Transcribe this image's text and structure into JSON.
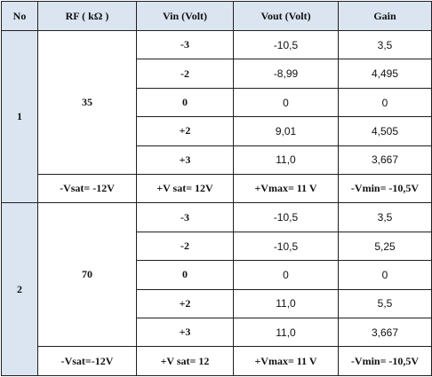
{
  "headers": [
    "No",
    "RF ( kΩ )",
    "Vin (Volt)",
    "Vout (Volt)",
    "Gain"
  ],
  "groups": [
    {
      "no": "1",
      "rf": "35",
      "rows": [
        {
          "vin": "-3",
          "vout": "-10,5",
          "gain": "3,5"
        },
        {
          "vin": "-2",
          "vout": "-8,99",
          "gain": "4,495"
        },
        {
          "vin": "0",
          "vout": "0",
          "gain": "0"
        },
        {
          "vin": "+2",
          "vout": "9,01",
          "gain": "4,505"
        },
        {
          "vin": "+3",
          "vout": "11,0",
          "gain": "3,667"
        }
      ],
      "summary": {
        "vsat_neg": "-Vsat= -12V",
        "vsat_pos": "+V sat= 12V",
        "vmax": "+Vmax= 11 V",
        "vmin": "-Vmin= -10,5V"
      }
    },
    {
      "no": "2",
      "rf": "70",
      "rows": [
        {
          "vin": "-3",
          "vout": "-10,5",
          "gain": "3,5"
        },
        {
          "vin": "-2",
          "vout": "-10,5",
          "gain": "5,25"
        },
        {
          "vin": "0",
          "vout": "0",
          "gain": "0"
        },
        {
          "vin": "+2",
          "vout": "11,0",
          "gain": "5,5"
        },
        {
          "vin": "+3",
          "vout": "11,0",
          "gain": "3,667"
        }
      ],
      "summary": {
        "vsat_neg": "-Vsat=-12V",
        "vsat_pos": "+V sat= 12",
        "vmax": "+Vmax= 11 V",
        "vmin": "-Vmin= -10,5V"
      }
    }
  ]
}
